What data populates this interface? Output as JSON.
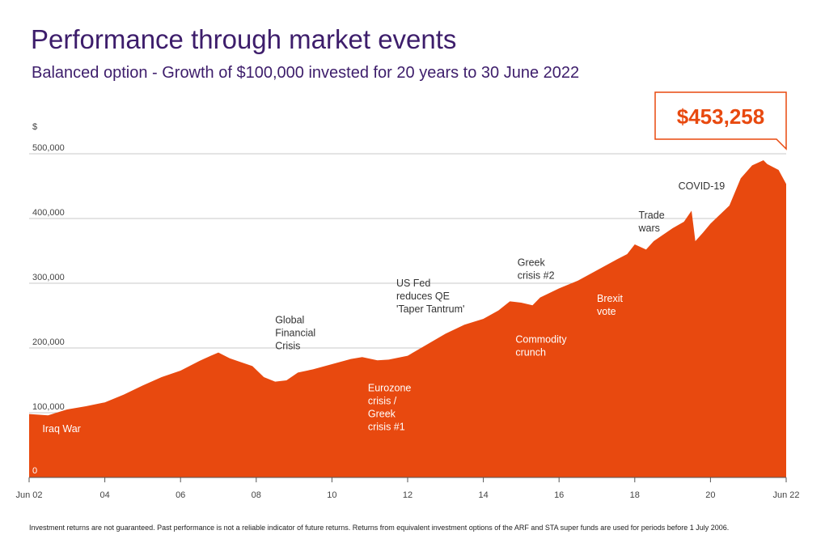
{
  "title": "Performance through market events",
  "subtitle": "Balanced option - Growth of $100,000 invested for 20 years to 30 June 2022",
  "footnote": "Investment returns are not guaranteed. Past performance is not a reliable indicator of future returns. Returns from equivalent investment options of the ARF and STA super funds are used for periods before 1 July 2006.",
  "colors": {
    "fill": "#e8490f",
    "callout": "#e8490f",
    "title": "#3d1d6b",
    "grid": "#c8c8c8",
    "annotation_dark": "#333333",
    "annotation_light": "#ffffff"
  },
  "chart_data": {
    "type": "area",
    "ylabel": "$",
    "ylim": [
      0,
      500000
    ],
    "xlim": [
      2002.5,
      2022.5
    ],
    "grid": true,
    "y_ticks": [
      {
        "value": 0,
        "label": "0"
      },
      {
        "value": 100000,
        "label": "100,000"
      },
      {
        "value": 200000,
        "label": "200,000"
      },
      {
        "value": 300000,
        "label": "300,000"
      },
      {
        "value": 400000,
        "label": "400,000"
      },
      {
        "value": 500000,
        "label": "500,000"
      }
    ],
    "x_ticks": [
      {
        "value": 2002.5,
        "label": "Jun 02"
      },
      {
        "value": 2004.5,
        "label": "04"
      },
      {
        "value": 2006.5,
        "label": "06"
      },
      {
        "value": 2008.5,
        "label": "08"
      },
      {
        "value": 2010.5,
        "label": "10"
      },
      {
        "value": 2012.5,
        "label": "12"
      },
      {
        "value": 2014.5,
        "label": "14"
      },
      {
        "value": 2016.5,
        "label": "16"
      },
      {
        "value": 2018.5,
        "label": "18"
      },
      {
        "value": 2020.5,
        "label": "20"
      },
      {
        "value": 2022.5,
        "label": "Jun 22"
      }
    ],
    "series": [
      {
        "x": [
          2002.5,
          2003.0,
          2003.5,
          2004.0,
          2004.5,
          2005.0,
          2005.5,
          2006.0,
          2006.5,
          2007.0,
          2007.3,
          2007.5,
          2007.8,
          2008.0,
          2008.4,
          2008.7,
          2009.0,
          2009.3,
          2009.6,
          2010.0,
          2010.5,
          2011.0,
          2011.3,
          2011.7,
          2012.0,
          2012.5,
          2013.0,
          2013.5,
          2014.0,
          2014.5,
          2014.9,
          2015.2,
          2015.5,
          2015.8,
          2016.0,
          2016.5,
          2017.0,
          2017.5,
          2018.0,
          2018.3,
          2018.5,
          2018.8,
          2019.0,
          2019.5,
          2019.8,
          2020.0,
          2020.1,
          2020.3,
          2020.5,
          2021.0,
          2021.3,
          2021.6,
          2021.9,
          2022.0,
          2022.3,
          2022.5
        ],
        "values": [
          98000,
          96000,
          105000,
          110000,
          116000,
          128000,
          142000,
          155000,
          165000,
          180000,
          188000,
          193000,
          184000,
          180000,
          172000,
          155000,
          148000,
          150000,
          162000,
          167000,
          175000,
          183000,
          186000,
          181000,
          182000,
          188000,
          205000,
          222000,
          236000,
          245000,
          258000,
          272000,
          270000,
          266000,
          278000,
          292000,
          304000,
          320000,
          336000,
          345000,
          360000,
          352000,
          365000,
          385000,
          395000,
          412000,
          365000,
          378000,
          392000,
          420000,
          462000,
          482000,
          490000,
          484000,
          475000,
          453258
        ]
      }
    ],
    "callout": "$453,258",
    "annotations": [
      {
        "text": [
          "Iraq War"
        ],
        "x": 2002.85,
        "y": 70000,
        "color": "light"
      },
      {
        "text": [
          "Global",
          "Financial",
          "Crisis"
        ],
        "x": 2009.0,
        "y": 238000,
        "color": "dark"
      },
      {
        "text": [
          "Eurozone",
          "crisis /",
          "Greek",
          "crisis #1"
        ],
        "x": 2011.45,
        "y": 133000,
        "color": "light"
      },
      {
        "text": [
          "US Fed",
          "reduces QE",
          "'Taper Tantrum'"
        ],
        "x": 2012.2,
        "y": 295000,
        "color": "dark"
      },
      {
        "text": [
          "Commodity",
          "crunch"
        ],
        "x": 2015.35,
        "y": 208000,
        "color": "light"
      },
      {
        "text": [
          "Greek",
          "crisis #2"
        ],
        "x": 2015.4,
        "y": 327000,
        "color": "dark"
      },
      {
        "text": [
          "Brexit",
          "vote"
        ],
        "x": 2017.5,
        "y": 271000,
        "color": "light"
      },
      {
        "text": [
          "Trade",
          "wars"
        ],
        "x": 2018.6,
        "y": 400000,
        "color": "dark"
      },
      {
        "text": [
          "COVID-19"
        ],
        "x": 2019.65,
        "y": 445000,
        "color": "dark"
      }
    ]
  }
}
